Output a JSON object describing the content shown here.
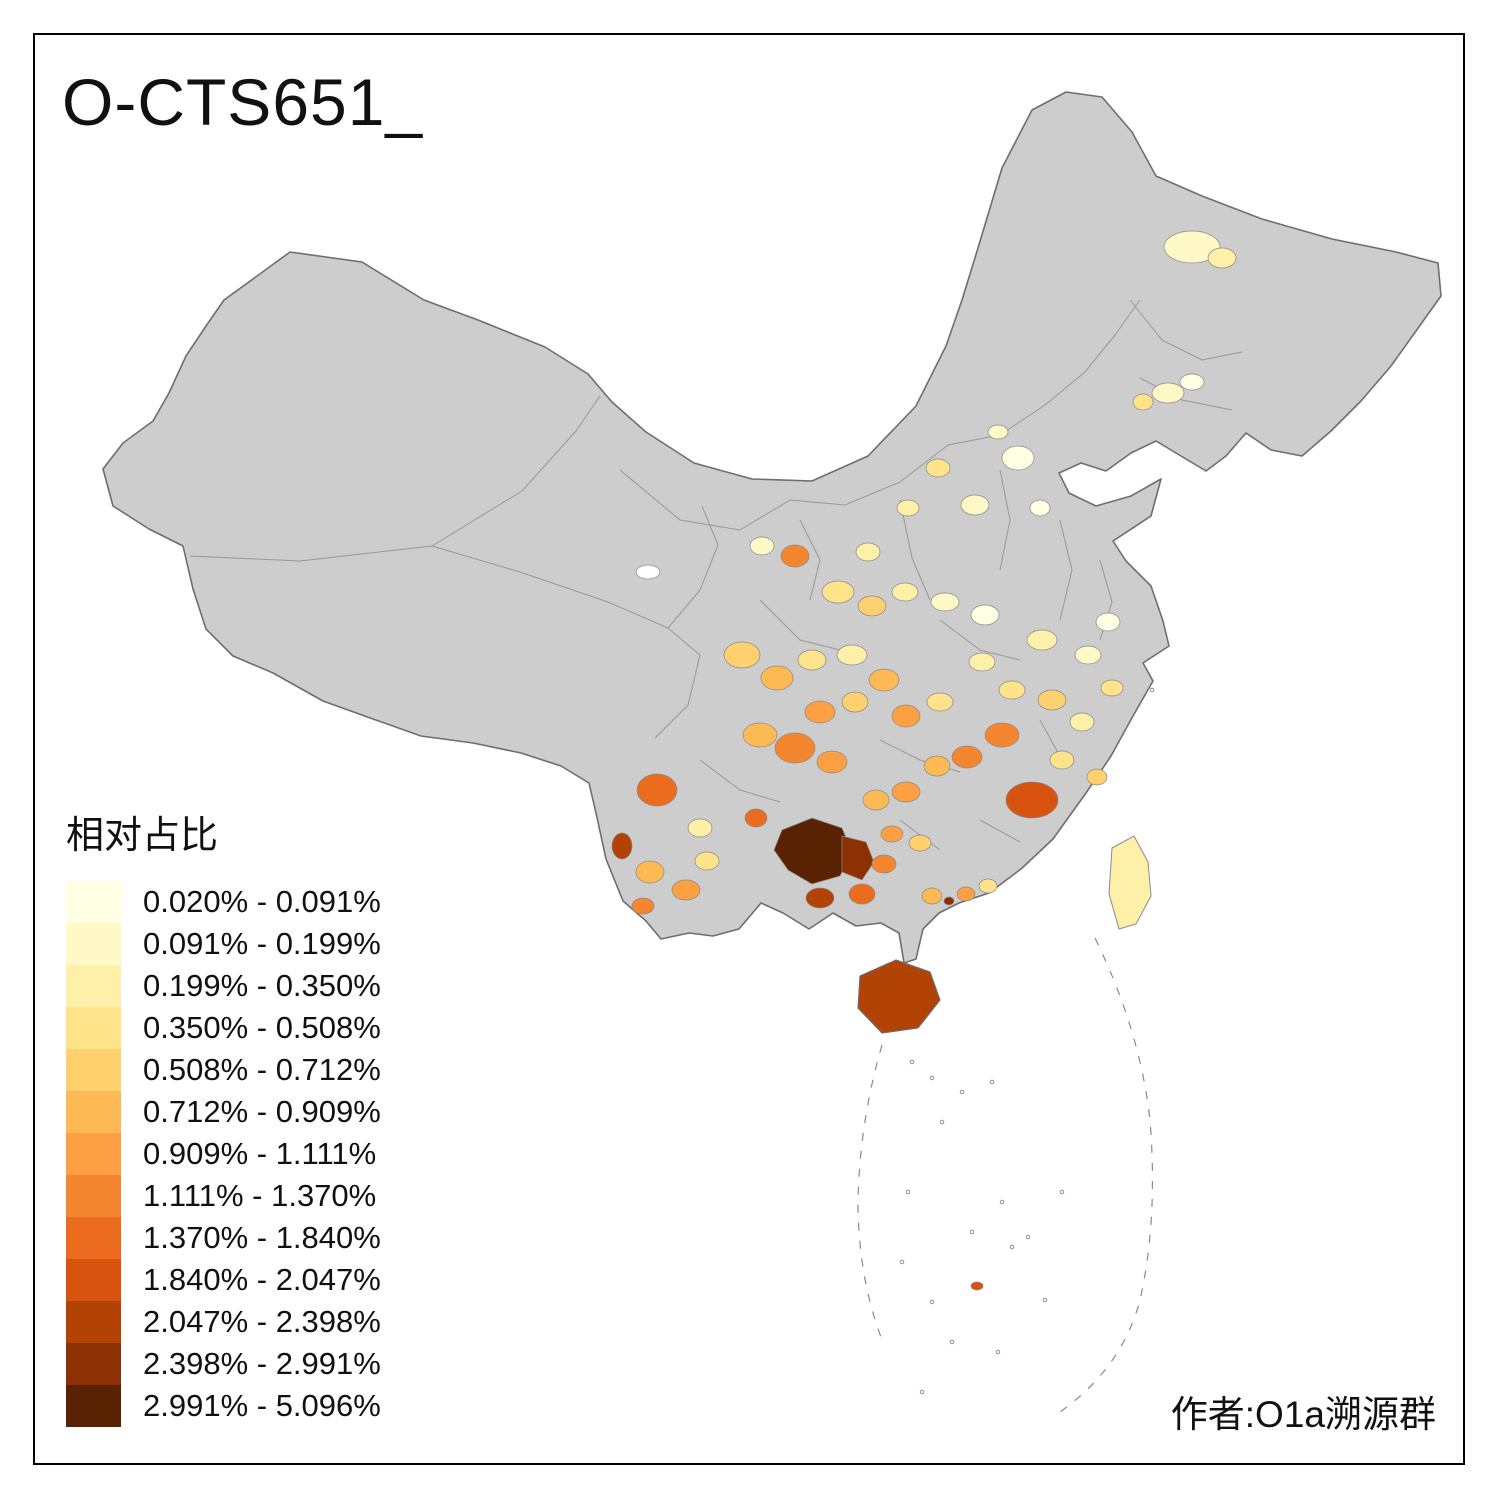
{
  "title": "O-CTS651_",
  "author": "作者:O1a溯源群",
  "legend": {
    "title": "相对占比",
    "items": [
      {
        "label": "0.020% - 0.091%",
        "color": "#FFFFE3"
      },
      {
        "label": "0.091% - 0.199%",
        "color": "#FFF9C7"
      },
      {
        "label": "0.199% - 0.350%",
        "color": "#FEF0A8"
      },
      {
        "label": "0.350% - 0.508%",
        "color": "#FEE38B"
      },
      {
        "label": "0.508% - 0.712%",
        "color": "#FED06E"
      },
      {
        "label": "0.712% - 0.909%",
        "color": "#FDB953"
      },
      {
        "label": "0.909% - 1.111%",
        "color": "#FCA043"
      },
      {
        "label": "1.111% - 1.370%",
        "color": "#F58630"
      },
      {
        "label": "1.370% - 1.840%",
        "color": "#EC6C1F"
      },
      {
        "label": "1.840% - 2.047%",
        "color": "#D85310"
      },
      {
        "label": "2.047% - 2.398%",
        "color": "#B34205"
      },
      {
        "label": "2.398% - 2.991%",
        "color": "#8C3104"
      },
      {
        "label": "2.991% - 5.096%",
        "color": "#592203"
      }
    ]
  },
  "map": {
    "colors": {
      "no_data": "#CDCDCD",
      "region_border": "#6E6E6E",
      "background": "#FFFFFF",
      "frame": "#000000"
    }
  }
}
